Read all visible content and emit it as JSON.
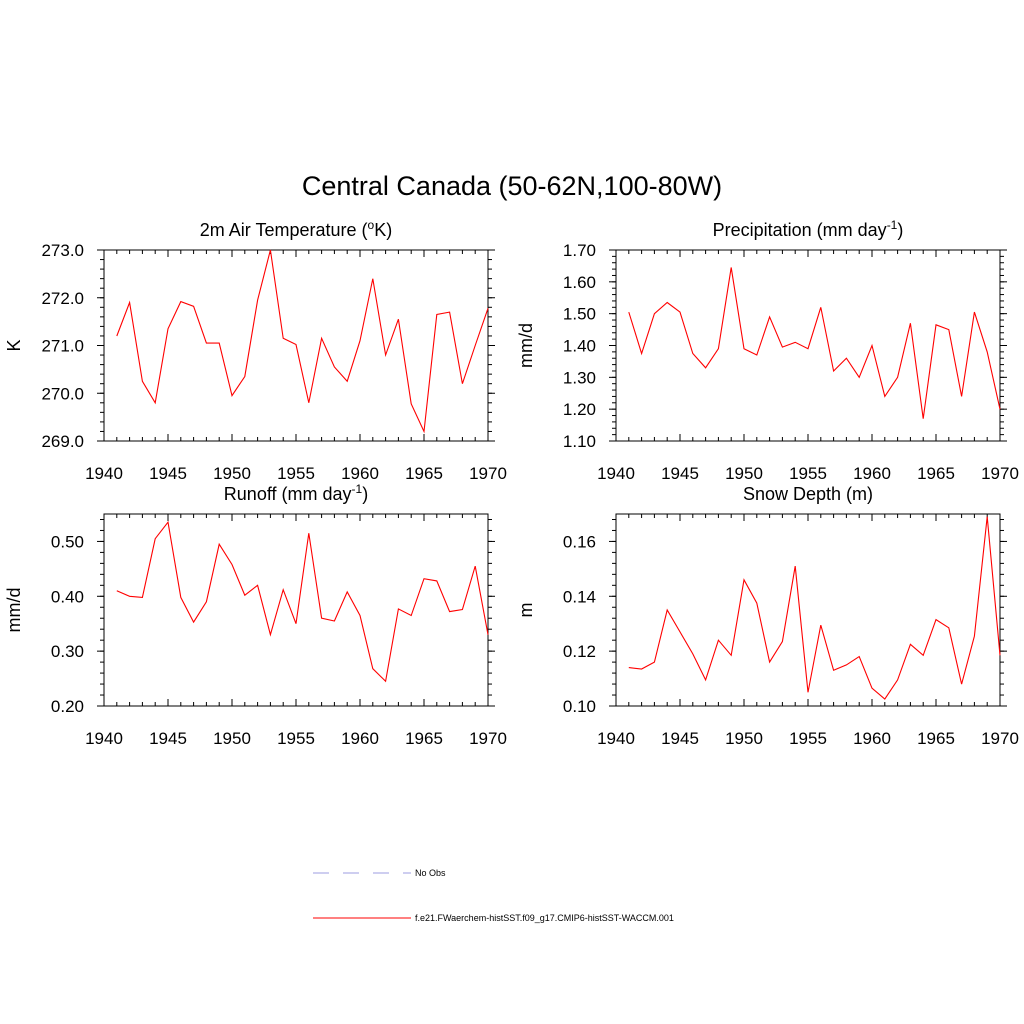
{
  "figure_title": "Central Canada (50-62N,100-80W)",
  "colors": {
    "model_line": "#ff0000",
    "obs_line": "#b0b0e8",
    "axis": "#000000"
  },
  "legend": {
    "entries": [
      {
        "label": "No Obs",
        "style": "dashed",
        "color": "#b0b0e8"
      },
      {
        "label": "f.e21.FWaerchem-histSST.f09_g17.CMIP6-histSST-WACCM.001",
        "style": "solid",
        "color": "#ff0000"
      }
    ]
  },
  "chart_data": [
    {
      "type": "line",
      "title": "2m Air Temperature (",
      "title_sup": "o",
      "title_end": "K)",
      "ylabel": "K",
      "xlim": [
        1940,
        1970
      ],
      "ylim": [
        269.0,
        273.0
      ],
      "xticks": [
        "1940",
        "1945",
        "1950",
        "1955",
        "1960",
        "1965",
        "1970"
      ],
      "yticks": [
        "269.0",
        "270.0",
        "271.0",
        "272.0",
        "273.0"
      ],
      "ytick_values": [
        269.0,
        270.0,
        271.0,
        272.0,
        273.0
      ],
      "series": [
        {
          "x": [
            1941,
            1942,
            1943,
            1944,
            1945,
            1946,
            1947,
            1948,
            1949,
            1950,
            1951,
            1952,
            1953,
            1954,
            1955,
            1956,
            1957,
            1958,
            1959,
            1960,
            1961,
            1962,
            1963,
            1964,
            1965,
            1966,
            1967,
            1968,
            1969,
            1970
          ],
          "values": [
            271.2,
            271.9,
            270.25,
            269.8,
            271.35,
            271.92,
            271.82,
            271.05,
            271.05,
            269.95,
            270.35,
            271.95,
            273.0,
            271.15,
            271.02,
            269.8,
            271.15,
            270.55,
            270.25,
            271.1,
            272.4,
            270.8,
            271.55,
            269.78,
            269.2,
            271.65,
            271.7,
            270.2,
            271.0,
            271.78
          ]
        }
      ]
    },
    {
      "type": "line",
      "title": "Precipitation (mm day",
      "title_sup": "-1",
      "title_end": ")",
      "ylabel": "mm/d",
      "xlim": [
        1940,
        1970
      ],
      "ylim": [
        1.1,
        1.7
      ],
      "xticks": [
        "1940",
        "1945",
        "1950",
        "1955",
        "1960",
        "1965",
        "1970"
      ],
      "yticks": [
        "1.10",
        "1.20",
        "1.30",
        "1.40",
        "1.50",
        "1.60",
        "1.70"
      ],
      "ytick_values": [
        1.1,
        1.2,
        1.3,
        1.4,
        1.5,
        1.6,
        1.7
      ],
      "series": [
        {
          "x": [
            1941,
            1942,
            1943,
            1944,
            1945,
            1946,
            1947,
            1948,
            1949,
            1950,
            1951,
            1952,
            1953,
            1954,
            1955,
            1956,
            1957,
            1958,
            1959,
            1960,
            1961,
            1962,
            1963,
            1964,
            1965,
            1966,
            1967,
            1968,
            1969,
            1970
          ],
          "values": [
            1.505,
            1.375,
            1.5,
            1.535,
            1.505,
            1.375,
            1.33,
            1.39,
            1.645,
            1.39,
            1.37,
            1.49,
            1.395,
            1.41,
            1.39,
            1.52,
            1.32,
            1.36,
            1.3,
            1.4,
            1.24,
            1.3,
            1.47,
            1.17,
            1.465,
            1.45,
            1.24,
            1.505,
            1.38,
            1.2
          ]
        }
      ]
    },
    {
      "type": "line",
      "title": "Runoff (mm day",
      "title_sup": "-1",
      "title_end": ")",
      "ylabel": "mm/d",
      "xlim": [
        1940,
        1970
      ],
      "ylim": [
        0.2,
        0.55
      ],
      "xticks": [
        "1940",
        "1945",
        "1950",
        "1955",
        "1960",
        "1965",
        "1970"
      ],
      "yticks": [
        "0.20",
        "0.30",
        "0.40",
        "0.50"
      ],
      "ytick_values": [
        0.2,
        0.3,
        0.4,
        0.5
      ],
      "series": [
        {
          "x": [
            1941,
            1942,
            1943,
            1944,
            1945,
            1946,
            1947,
            1948,
            1949,
            1950,
            1951,
            1952,
            1953,
            1954,
            1955,
            1956,
            1957,
            1958,
            1959,
            1960,
            1961,
            1962,
            1963,
            1964,
            1965,
            1966,
            1967,
            1968,
            1969,
            1970
          ],
          "values": [
            0.41,
            0.4,
            0.398,
            0.505,
            0.535,
            0.398,
            0.353,
            0.39,
            0.495,
            0.458,
            0.402,
            0.42,
            0.33,
            0.412,
            0.35,
            0.515,
            0.36,
            0.355,
            0.408,
            0.365,
            0.268,
            0.245,
            0.377,
            0.365,
            0.432,
            0.428,
            0.372,
            0.376,
            0.455,
            0.33
          ]
        }
      ]
    },
    {
      "type": "line",
      "title": "Snow Depth (m)",
      "title_sup": "",
      "title_end": "",
      "ylabel": "m",
      "xlim": [
        1940,
        1970
      ],
      "ylim": [
        0.1,
        0.17
      ],
      "xticks": [
        "1940",
        "1945",
        "1950",
        "1955",
        "1960",
        "1965",
        "1970"
      ],
      "yticks": [
        "0.10",
        "0.12",
        "0.14",
        "0.16"
      ],
      "ytick_values": [
        0.1,
        0.12,
        0.14,
        0.16
      ],
      "series": [
        {
          "x": [
            1941,
            1942,
            1943,
            1944,
            1945,
            1946,
            1947,
            1948,
            1949,
            1950,
            1951,
            1952,
            1953,
            1954,
            1955,
            1956,
            1957,
            1958,
            1959,
            1960,
            1961,
            1962,
            1963,
            1964,
            1965,
            1966,
            1967,
            1968,
            1969,
            1970
          ],
          "values": [
            0.114,
            0.1135,
            0.116,
            0.135,
            0.127,
            0.119,
            0.1095,
            0.124,
            0.1185,
            0.146,
            0.1375,
            0.116,
            0.1235,
            0.151,
            0.105,
            0.1295,
            0.113,
            0.115,
            0.118,
            0.1065,
            0.1025,
            0.1095,
            0.1225,
            0.1185,
            0.1315,
            0.1285,
            0.108,
            0.1255,
            0.169,
            0.1185
          ]
        }
      ]
    }
  ]
}
